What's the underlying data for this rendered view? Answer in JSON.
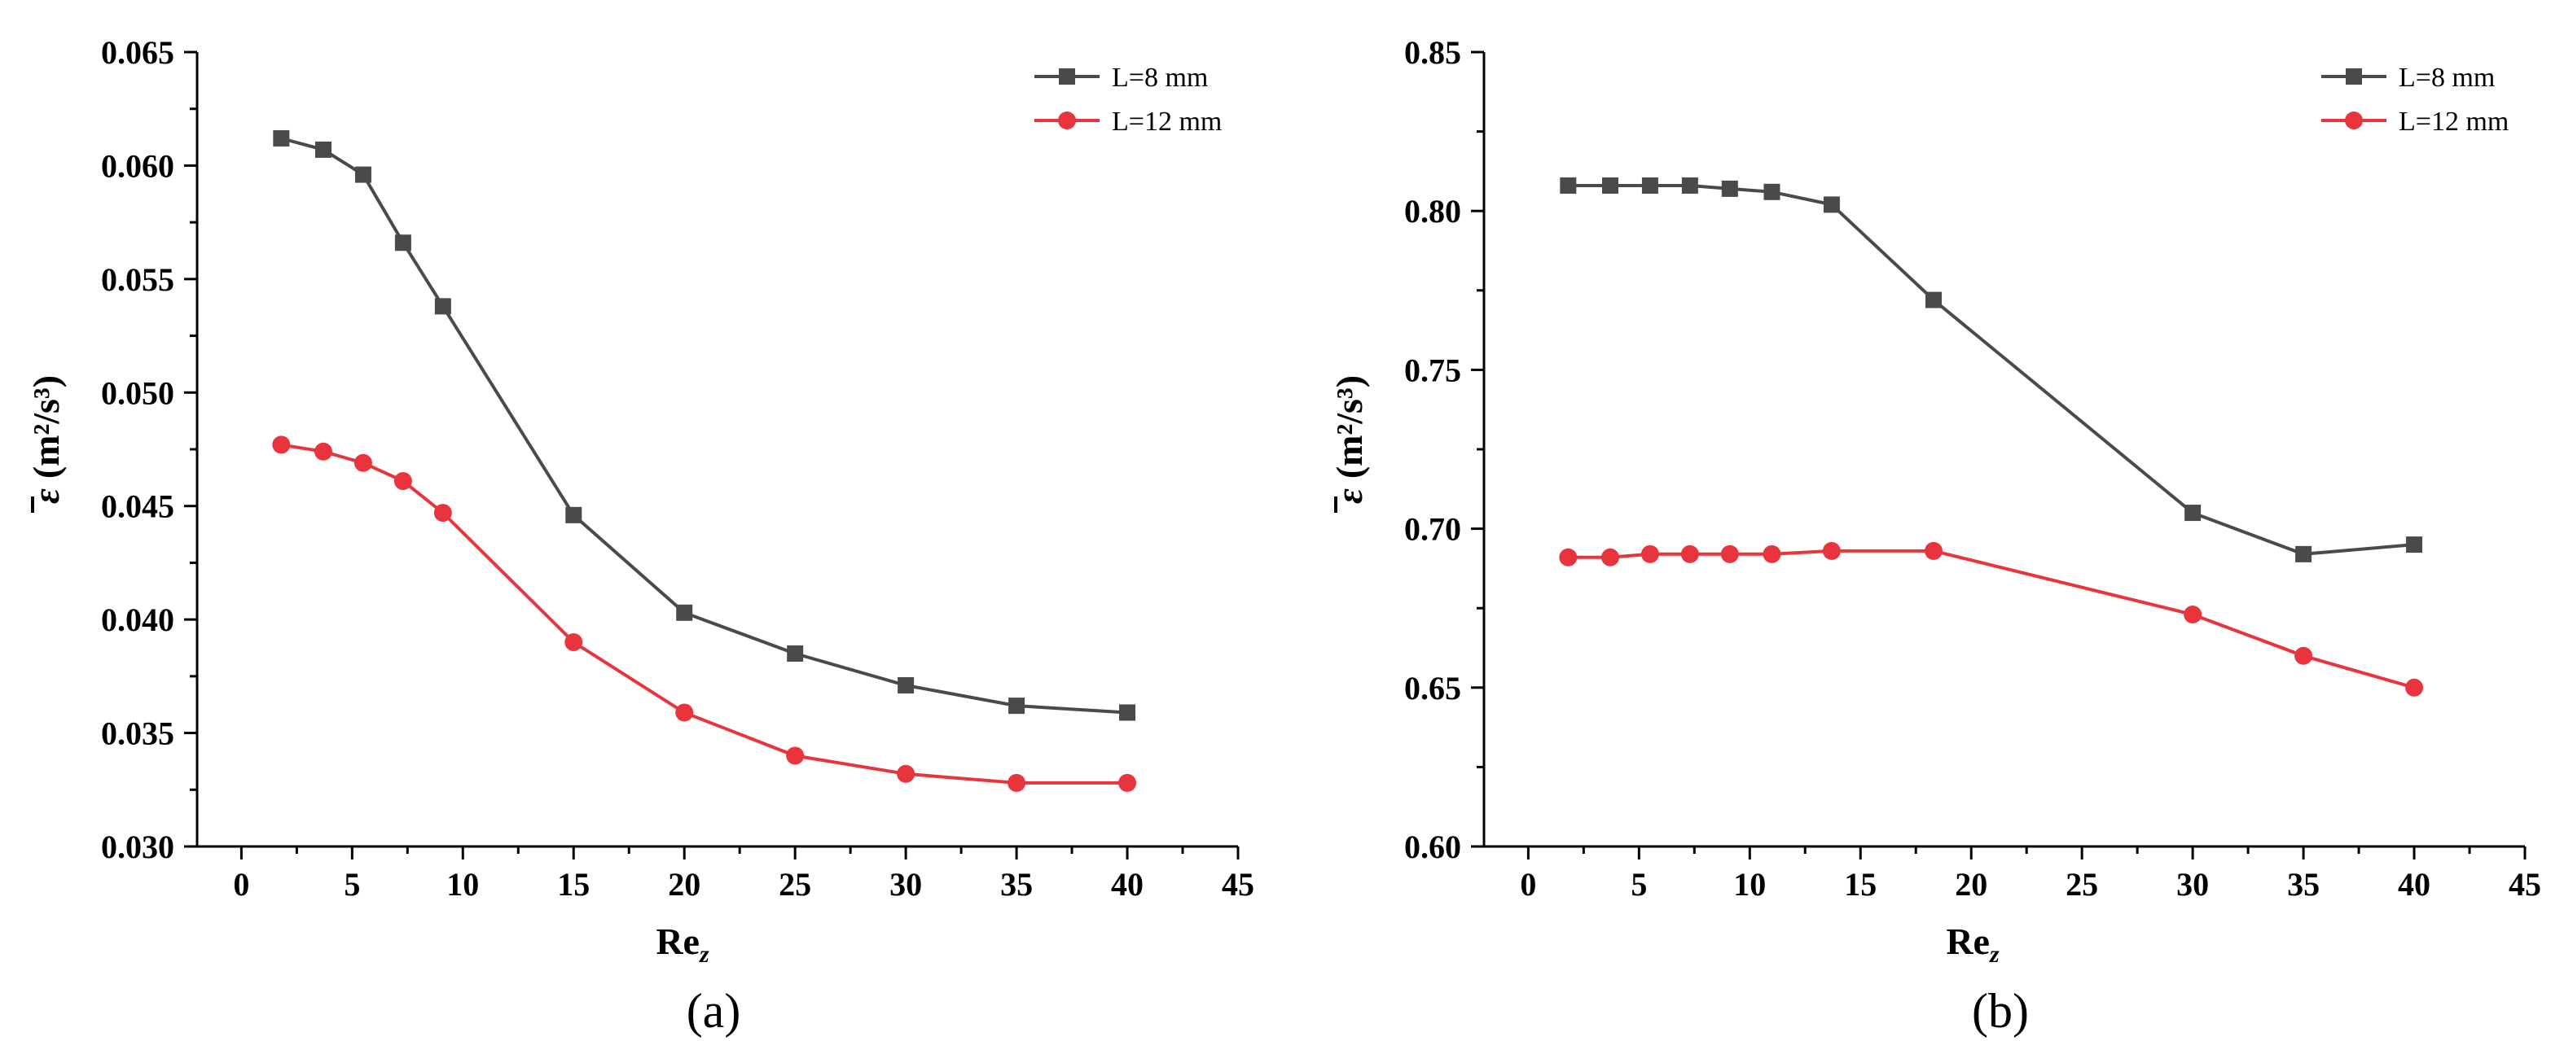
{
  "chart_data": [
    {
      "type": "line",
      "panel_label": "(a)",
      "xlabel_main": "Re",
      "xlabel_sub": "z",
      "ylabel_symbol": "ε",
      "ylabel_unit": "(m²/s³)",
      "xlim": [
        -2,
        45
      ],
      "ylim": [
        0.03,
        0.065
      ],
      "xticks": [
        0,
        5,
        10,
        15,
        20,
        25,
        30,
        35,
        40,
        45
      ],
      "yticks": [
        0.03,
        0.035,
        0.04,
        0.045,
        0.05,
        0.055,
        0.06,
        0.065
      ],
      "ytick_labels": [
        "0.030",
        "0.035",
        "0.040",
        "0.045",
        "0.050",
        "0.055",
        "0.060",
        "0.065"
      ],
      "legend_position": "top-right",
      "series": [
        {
          "name": "L=8 mm",
          "color": "#4a4a4a",
          "marker": "square",
          "x": [
            1.8,
            3.7,
            5.5,
            7.3,
            9.1,
            15,
            20,
            25,
            30,
            35,
            40
          ],
          "y": [
            0.0612,
            0.0607,
            0.0596,
            0.0566,
            0.0538,
            0.0446,
            0.0403,
            0.0385,
            0.0371,
            0.0362,
            0.0359
          ]
        },
        {
          "name": "L=12 mm",
          "color": "#e8353d",
          "marker": "circle",
          "x": [
            1.8,
            3.7,
            5.5,
            7.3,
            9.1,
            15,
            20,
            25,
            30,
            35,
            40
          ],
          "y": [
            0.0477,
            0.0474,
            0.0469,
            0.0461,
            0.0447,
            0.039,
            0.0359,
            0.034,
            0.0332,
            0.0328,
            0.0328
          ]
        }
      ]
    },
    {
      "type": "line",
      "panel_label": "(b)",
      "xlabel_main": "Re",
      "xlabel_sub": "z",
      "ylabel_symbol": "ε",
      "ylabel_unit": "(m²/s³)",
      "xlim": [
        -2,
        45
      ],
      "ylim": [
        0.6,
        0.85
      ],
      "xticks": [
        0,
        5,
        10,
        15,
        20,
        25,
        30,
        35,
        40,
        45
      ],
      "yticks": [
        0.6,
        0.65,
        0.7,
        0.75,
        0.8,
        0.85
      ],
      "ytick_labels": [
        "0.60",
        "0.65",
        "0.70",
        "0.75",
        "0.80",
        "0.85"
      ],
      "legend_position": "top-right",
      "series": [
        {
          "name": "L=8 mm",
          "color": "#4a4a4a",
          "marker": "square",
          "x": [
            1.8,
            3.7,
            5.5,
            7.3,
            9.1,
            11,
            13.7,
            18.3,
            30,
            35,
            40
          ],
          "y": [
            0.808,
            0.808,
            0.808,
            0.808,
            0.807,
            0.806,
            0.802,
            0.772,
            0.705,
            0.692,
            0.695
          ]
        },
        {
          "name": "L=12 mm",
          "color": "#e8353d",
          "marker": "circle",
          "x": [
            1.8,
            3.7,
            5.5,
            7.3,
            9.1,
            11,
            13.7,
            18.3,
            30,
            35,
            40
          ],
          "y": [
            0.691,
            0.691,
            0.692,
            0.692,
            0.692,
            0.692,
            0.693,
            0.693,
            0.673,
            0.66,
            0.65
          ]
        }
      ]
    }
  ]
}
